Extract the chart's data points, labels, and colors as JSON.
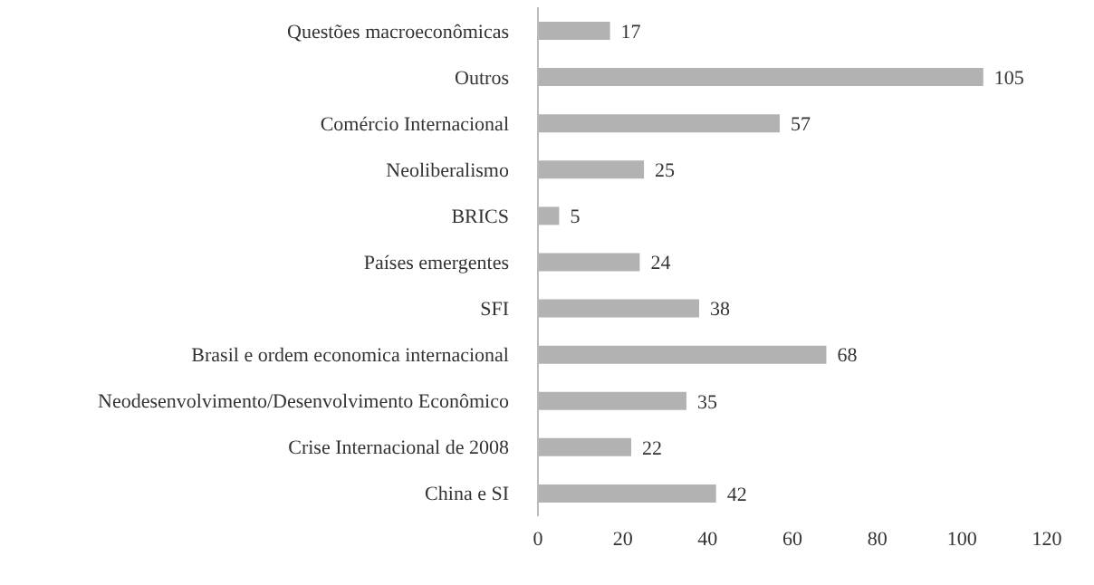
{
  "chart_data": {
    "type": "bar",
    "orientation": "horizontal",
    "categories": [
      "Questões macroeconômicas",
      "Outros",
      "Comércio Internacional",
      "Neoliberalismo",
      "BRICS",
      "Países emergentes",
      "SFI",
      "Brasil e ordem economica internacional",
      "Neodesenvolvimento/Desenvolvimento Econômico",
      "Crise Internacional de 2008",
      "China e SI"
    ],
    "values": [
      17,
      105,
      57,
      25,
      5,
      24,
      38,
      68,
      35,
      22,
      42
    ],
    "color": "#b2b2b2",
    "xlim": [
      0,
      120
    ],
    "xticks": [
      0,
      20,
      40,
      60,
      80,
      100,
      120
    ],
    "data_labels": true
  }
}
